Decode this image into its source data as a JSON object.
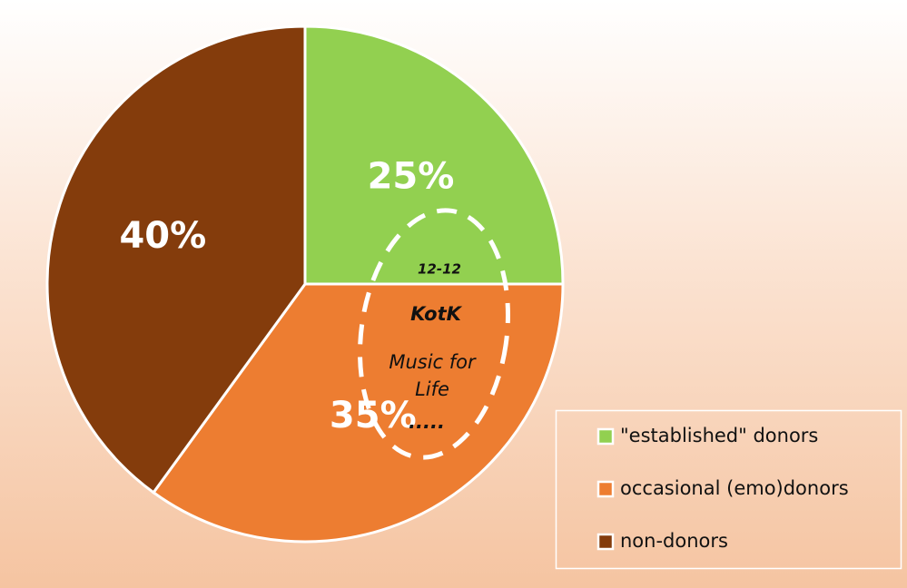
{
  "chart_data": {
    "type": "pie",
    "categories": [
      "\"established\" donors",
      "occasional (emo)donors",
      "non-donors"
    ],
    "values": [
      25,
      35,
      40
    ],
    "value_labels": [
      "25%",
      "35%",
      "40%"
    ],
    "colors": [
      "#92d050",
      "#ed7d31",
      "#843c0c"
    ],
    "annotations": [
      "12-12",
      "KotK",
      "Music for Life",
      "....."
    ],
    "legend": "lower right"
  }
}
